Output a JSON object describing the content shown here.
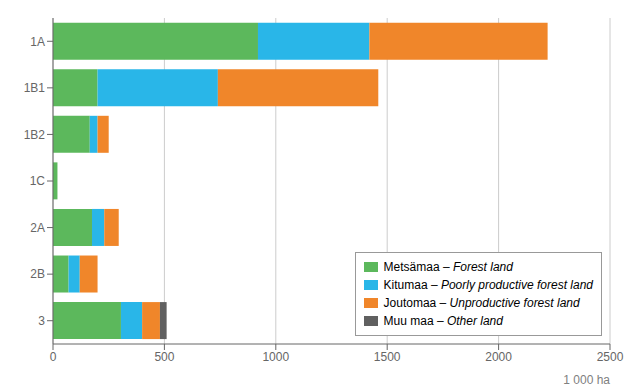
{
  "chart_data": {
    "type": "bar",
    "orientation": "horizontal",
    "stacked": true,
    "categories": [
      "1A",
      "1B1",
      "1B2",
      "1C",
      "2A",
      "2B",
      "3"
    ],
    "series": [
      {
        "name": "Metsämaa – Forest land",
        "color": "#5cb85c",
        "values": [
          920,
          200,
          165,
          20,
          175,
          70,
          305
        ]
      },
      {
        "name": "Kitumaa – Poorly productive forest land",
        "color": "#29b6e8",
        "values": [
          500,
          540,
          35,
          0,
          55,
          50,
          95
        ]
      },
      {
        "name": "Joutomaa – Unproductive forest land",
        "color": "#f0862a",
        "values": [
          800,
          720,
          50,
          0,
          65,
          80,
          80
        ]
      },
      {
        "name": "Muu maa – Other land",
        "color": "#606060",
        "values": [
          0,
          0,
          0,
          0,
          0,
          0,
          30
        ]
      }
    ],
    "xlim": [
      0,
      2500
    ],
    "xticks": [
      0,
      500,
      1000,
      1500,
      2000,
      2500
    ],
    "xlabel": "1 000 ha",
    "grid": true,
    "legend": "lower right"
  }
}
